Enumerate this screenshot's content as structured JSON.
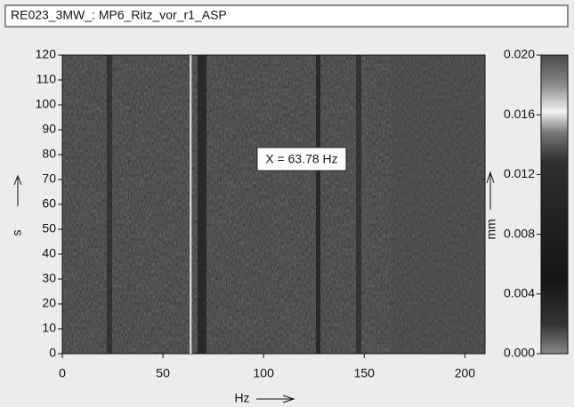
{
  "chart_data": {
    "type": "heatmap",
    "title": "RE023_3MW_: MP6_Ritz_vor_r1_ASP",
    "x_label": "Hz",
    "y_label": "s",
    "colorbar_label": "mm",
    "xlim": [
      0,
      210
    ],
    "xticks": [
      0,
      50,
      100,
      150,
      200
    ],
    "ylim": [
      0,
      120
    ],
    "yticks": [
      0,
      10,
      20,
      30,
      40,
      50,
      60,
      70,
      80,
      90,
      100,
      110,
      120
    ],
    "clim": [
      0,
      0.02
    ],
    "cticks": [
      {
        "value": 0,
        "label": "0.000"
      },
      {
        "value": 0.004,
        "label": "0.004"
      },
      {
        "value": 0.008,
        "label": "0.008"
      },
      {
        "value": 0.012,
        "label": "0.012"
      },
      {
        "value": 0.016,
        "label": "0.016"
      },
      {
        "value": 0.02,
        "label": "0.020"
      }
    ],
    "cursor": {
      "value": 63.78,
      "label": "X = 63.78 Hz"
    }
  }
}
